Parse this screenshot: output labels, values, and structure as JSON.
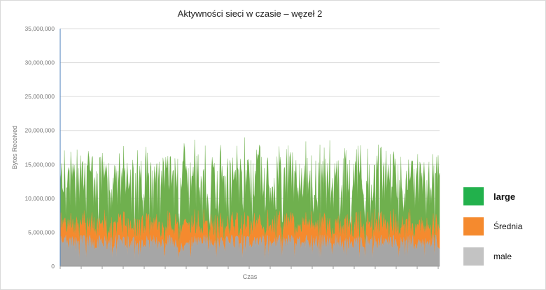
{
  "chart_data": {
    "type": "area",
    "stacked": true,
    "title": "Aktywności sieci w czasie – węzeł 2",
    "xlabel": "Czas",
    "ylabel": "Bytes Received",
    "ylim": [
      0,
      35000000
    ],
    "yticks": [
      "0",
      "5,000,000",
      "10,000,000",
      "15,000,000",
      "20,000,000",
      "25,000,000",
      "30,000,000",
      "35,000,000"
    ],
    "grid": true,
    "legend_position": "right",
    "points": 540,
    "series": [
      {
        "name": "male",
        "color": "#a6a6a6",
        "typical": 4000000,
        "range": [
          1000000,
          6000000
        ]
      },
      {
        "name": "Średnia",
        "color": "#f58a2e",
        "typical": 2800000,
        "range": [
          1000000,
          5500000
        ]
      },
      {
        "name": "large",
        "color": "#6fb04e",
        "typical": 5500000,
        "range": [
          1000000,
          12000000
        ]
      }
    ]
  },
  "legend": [
    {
      "label": "large",
      "color": "#22b14c"
    },
    {
      "label": "Średnia",
      "color": "#f58a2e"
    },
    {
      "label": "male",
      "color": "#c3c3c3"
    }
  ]
}
